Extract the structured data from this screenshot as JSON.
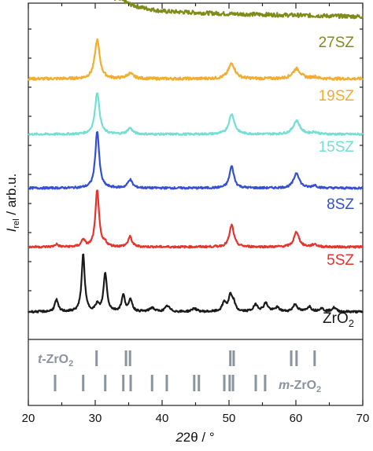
{
  "chart_data": {
    "type": "line",
    "xlabel": "2θ / °",
    "ylabel_main": "I",
    "ylabel_sub": "rel",
    "ylabel_rest": " / arb.u.",
    "xlim": [
      20,
      70
    ],
    "x_ticks": [
      20,
      30,
      40,
      50,
      60,
      70
    ],
    "y_ticks_unlabeled": true,
    "grid": false,
    "series": [
      {
        "name": "27SZ",
        "color": "#7f8c1a",
        "baseline": 0.96,
        "noise": 0.006,
        "background": [
          [
            20,
            0.06
          ],
          [
            26,
            0.07
          ],
          [
            30,
            0.06
          ],
          [
            35,
            0.03
          ],
          [
            40,
            0.015
          ],
          [
            50,
            0.008
          ],
          [
            60,
            0.004
          ],
          [
            70,
            0.0
          ]
        ],
        "peaks": [
          [
            30.3,
            0.02,
            1.5
          ],
          [
            34.0,
            0.01,
            1.5
          ]
        ]
      },
      {
        "name": "19SZ",
        "color": "#f2ac2e",
        "baseline": 0.775,
        "noise": 0.004,
        "background": [
          [
            20,
            0.0
          ],
          [
            70,
            0.0
          ]
        ],
        "peaks": [
          [
            30.3,
            0.115,
            0.45
          ],
          [
            35.2,
            0.015,
            0.6
          ],
          [
            50.4,
            0.045,
            0.6
          ],
          [
            60.1,
            0.03,
            0.7
          ],
          [
            62.8,
            0.005,
            0.5
          ]
        ]
      },
      {
        "name": "15SZ",
        "color": "#73dfd4",
        "baseline": 0.61,
        "noise": 0.003,
        "background": [
          [
            20,
            0.0
          ],
          [
            70,
            0.0
          ]
        ],
        "peaks": [
          [
            30.3,
            0.125,
            0.4
          ],
          [
            35.2,
            0.018,
            0.45
          ],
          [
            50.4,
            0.06,
            0.5
          ],
          [
            60.1,
            0.04,
            0.6
          ],
          [
            62.8,
            0.006,
            0.5
          ]
        ]
      },
      {
        "name": "8SZ",
        "color": "#3350d2",
        "baseline": 0.45,
        "noise": 0.003,
        "background": [
          [
            20,
            0.0
          ],
          [
            70,
            0.0
          ]
        ],
        "peaks": [
          [
            30.3,
            0.17,
            0.35
          ],
          [
            35.2,
            0.025,
            0.4
          ],
          [
            50.4,
            0.065,
            0.4
          ],
          [
            60.1,
            0.045,
            0.5
          ],
          [
            62.8,
            0.008,
            0.4
          ]
        ]
      },
      {
        "name": "5SZ",
        "color": "#e8322c",
        "baseline": 0.275,
        "noise": 0.003,
        "background": [
          [
            20,
            0.0
          ],
          [
            70,
            0.0
          ]
        ],
        "peaks": [
          [
            24.2,
            0.008,
            0.3
          ],
          [
            28.2,
            0.022,
            0.3
          ],
          [
            30.3,
            0.17,
            0.32
          ],
          [
            31.5,
            0.01,
            0.3
          ],
          [
            35.2,
            0.03,
            0.35
          ],
          [
            50.4,
            0.065,
            0.4
          ],
          [
            60.1,
            0.045,
            0.45
          ],
          [
            62.8,
            0.008,
            0.4
          ]
        ]
      },
      {
        "name": "ZrO2",
        "color": "#1a1a1a",
        "baseline": 0.082,
        "noise": 0.003,
        "background": [
          [
            20,
            0.0
          ],
          [
            70,
            0.0
          ]
        ],
        "peaks": [
          [
            24.2,
            0.035,
            0.3
          ],
          [
            28.2,
            0.17,
            0.28
          ],
          [
            30.3,
            0.02,
            0.3
          ],
          [
            31.5,
            0.115,
            0.3
          ],
          [
            34.2,
            0.048,
            0.3
          ],
          [
            35.3,
            0.035,
            0.3
          ],
          [
            38.5,
            0.012,
            0.4
          ],
          [
            40.8,
            0.017,
            0.4
          ],
          [
            44.8,
            0.01,
            0.4
          ],
          [
            49.3,
            0.028,
            0.35
          ],
          [
            50.2,
            0.045,
            0.3
          ],
          [
            50.7,
            0.025,
            0.3
          ],
          [
            54.0,
            0.02,
            0.4
          ],
          [
            55.5,
            0.025,
            0.4
          ],
          [
            57.2,
            0.012,
            0.4
          ],
          [
            59.9,
            0.022,
            0.4
          ],
          [
            62.0,
            0.015,
            0.4
          ],
          [
            63.8,
            0.01,
            0.4
          ],
          [
            65.7,
            0.012,
            0.4
          ]
        ]
      }
    ],
    "references": {
      "color": "#8a949e",
      "tetragonal": {
        "label_italic": "t",
        "label_main": "-ZrO",
        "label_sub": "2",
        "positions": [
          30.2,
          34.6,
          35.2,
          50.2,
          50.7,
          59.3,
          60.1,
          62.8
        ]
      },
      "monoclinic": {
        "label_italic": "m",
        "label_main": "-ZrO",
        "label_sub": "2",
        "positions": [
          24.0,
          28.2,
          31.5,
          34.2,
          35.3,
          38.5,
          40.7,
          44.8,
          45.5,
          49.3,
          50.1,
          50.6,
          54.0,
          55.4
        ]
      }
    },
    "legend_labels": [
      {
        "main": "27SZ",
        "sub": "",
        "color": "#7f8c1a"
      },
      {
        "main": "19SZ",
        "sub": "",
        "color": "#f2ac2e"
      },
      {
        "main": "15SZ",
        "sub": "",
        "color": "#73dfd4"
      },
      {
        "main": "8SZ",
        "sub": "",
        "color": "#3350d2"
      },
      {
        "main": "5SZ",
        "sub": "",
        "color": "#e8322c"
      },
      {
        "main": "ZrO",
        "sub": "2",
        "color": "#1a1a1a"
      }
    ]
  }
}
